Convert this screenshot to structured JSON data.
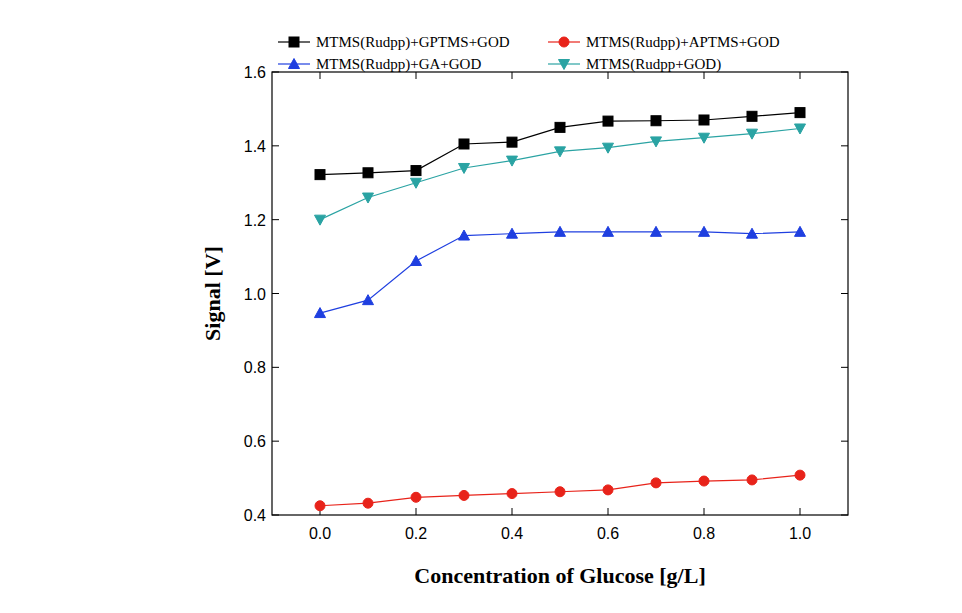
{
  "chart_data": {
    "type": "line",
    "x_label": "Concentration of Glucose [g/L]",
    "y_label": "Signal [V]",
    "x": [
      0,
      0.1,
      0.2,
      0.3,
      0.4,
      0.5,
      0.6,
      0.7,
      0.8,
      0.9,
      1
    ],
    "series": [
      {
        "name": "MTMS(Rudpp)+GPTMS+GOD",
        "color": "#000000",
        "marker": "square",
        "values": [
          1.322,
          1.327,
          1.333,
          1.405,
          1.41,
          1.45,
          1.467,
          1.468,
          1.47,
          1.48,
          1.49
        ]
      },
      {
        "name": "MTMS(Rudpp)+APTMS+GOD",
        "color": "#e8231a",
        "marker": "circle",
        "values": [
          0.425,
          0.432,
          0.448,
          0.453,
          0.458,
          0.463,
          0.468,
          0.487,
          0.492,
          0.495,
          0.508
        ]
      },
      {
        "name": "MTMS(Rudpp)+GA+GOD",
        "color": "#1f3fe0",
        "marker": "triangle-up",
        "values": [
          0.947,
          0.982,
          1.088,
          1.157,
          1.162,
          1.167,
          1.167,
          1.167,
          1.167,
          1.162,
          1.167
        ]
      },
      {
        "name": "MTMS(Rudpp+GOD)",
        "color": "#2aa3a3",
        "marker": "triangle-down",
        "values": [
          1.2,
          1.26,
          1.3,
          1.34,
          1.36,
          1.385,
          1.395,
          1.412,
          1.422,
          1.433,
          1.447
        ]
      }
    ],
    "xlim": [
      -0.1,
      1.1
    ],
    "xticks": [
      {
        "value": 0,
        "label": "0.0"
      },
      0.2,
      0.4,
      0.6,
      0.8,
      {
        "value": 1,
        "label": "1.0"
      }
    ],
    "ylim": [
      0.4,
      1.6
    ],
    "yticks": [
      0.4,
      0.6,
      0.8,
      {
        "value": 1,
        "label": "1.0"
      },
      1.2,
      1.4,
      1.6
    ],
    "grid": false,
    "legend": "top"
  }
}
